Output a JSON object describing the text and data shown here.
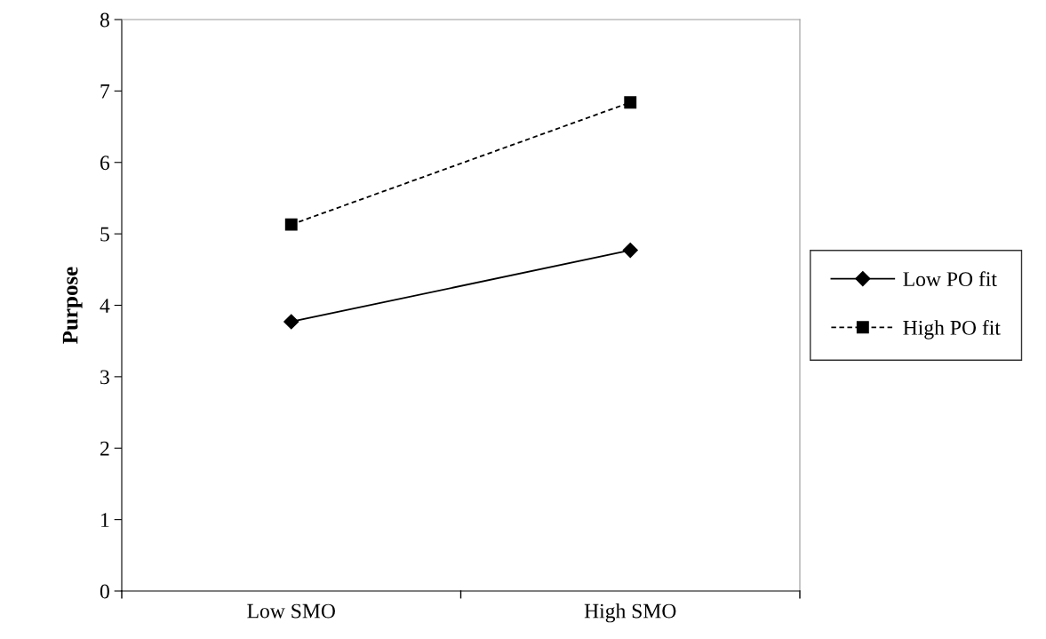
{
  "chart_data": {
    "type": "line",
    "ylabel": "Purpose",
    "categories": [
      "Low SMO",
      "High SMO"
    ],
    "series": [
      {
        "name": "Low PO fit",
        "color": "#000000",
        "values": [
          3.77,
          4.77
        ],
        "marker": "diamond",
        "line_style": "solid"
      },
      {
        "name": "High PO fit",
        "color": "#000000",
        "values": [
          5.13,
          6.84
        ],
        "marker": "square",
        "line_style": "dashed"
      }
    ],
    "ylim": [
      0,
      8
    ],
    "yticks": [
      0,
      1,
      2,
      3,
      4,
      5,
      6,
      7,
      8
    ],
    "grid": false,
    "legend": "right"
  }
}
